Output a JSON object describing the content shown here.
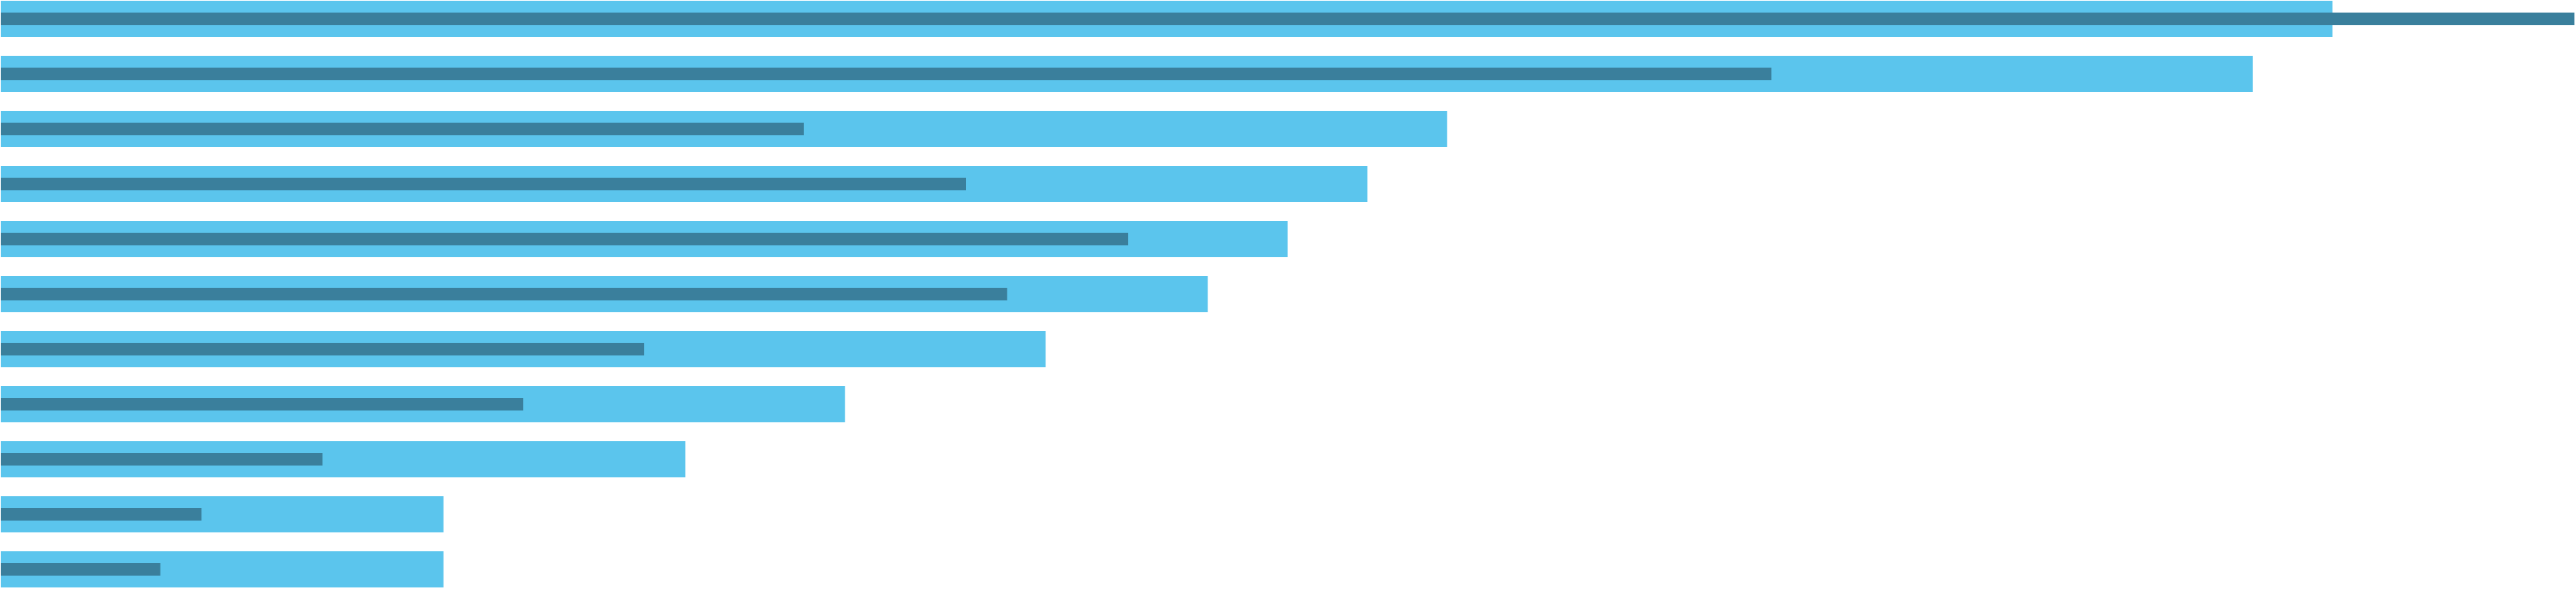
{
  "chart_data": {
    "type": "bar",
    "orientation": "horizontal",
    "layout": "overlapping-bullet",
    "title": "",
    "xlabel": "",
    "ylabel": "",
    "grid": false,
    "legend": "none",
    "xlim": [
      0,
      100
    ],
    "categories": [
      "",
      "",
      "",
      "",
      "",
      "",
      "",
      "",
      "",
      "",
      ""
    ],
    "series": [
      {
        "role": "background",
        "color": "#5bc5ed",
        "values": [
          90.6,
          87.5,
          56.2,
          53.1,
          50.0,
          46.9,
          40.6,
          32.8,
          26.6,
          17.2,
          17.2
        ]
      },
      {
        "role": "foreground",
        "color": "#3a7f9c",
        "values": [
          100.0,
          68.8,
          31.2,
          37.5,
          43.8,
          39.1,
          25.0,
          20.3,
          12.5,
          7.8,
          6.2
        ]
      }
    ]
  }
}
